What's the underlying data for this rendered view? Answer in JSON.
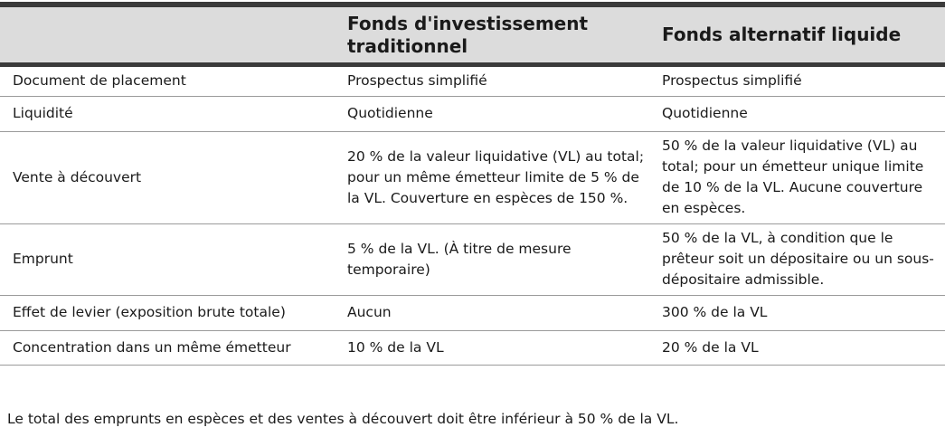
{
  "header": {
    "col1": "",
    "col2": "Fonds d'investissement traditionnel",
    "col3": "Fonds alternatif liquide"
  },
  "rows": [
    {
      "label": "Document de placement",
      "traditional": "Prospectus simplifié",
      "alternative": "Prospectus simplifié"
    },
    {
      "label": "Liquidité",
      "traditional": "Quotidienne",
      "alternative": "Quotidienne"
    },
    {
      "label": "Vente à découvert",
      "traditional": "20 % de la valeur liquidative (VL) au total; pour un même émetteur limite de 5 % de la VL. Couverture en espèces de 150 %.",
      "alternative": "50 % de la valeur liquidative (VL) au total; pour un émetteur unique limite de 10 % de la VL. Aucune couverture en espèces."
    },
    {
      "label": "Emprunt",
      "traditional": "5 % de la VL. (À titre de mesure temporaire)",
      "alternative": "50 % de la VL, à condition que le prêteur soit un dépositaire ou un sous-dépositaire admissible."
    },
    {
      "label": "Effet de levier (exposition brute totale)",
      "traditional": "Aucun",
      "alternative": "300 % de la VL"
    },
    {
      "label": "Concentration dans un même émetteur",
      "traditional": "10 % de la VL",
      "alternative": "20 % de la VL"
    }
  ],
  "footnote": "Le total des emprunts en espèces et des ventes à découvert doit être inférieur à 50 % de la VL."
}
